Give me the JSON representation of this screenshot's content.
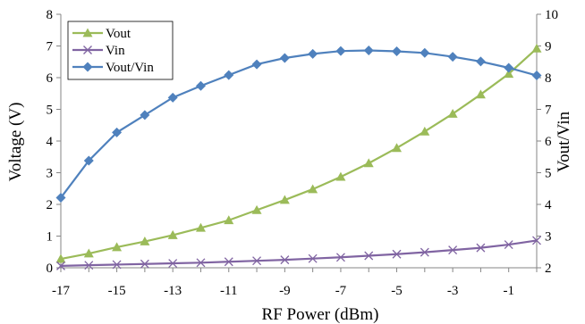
{
  "chart_data": {
    "type": "line",
    "x": [
      -17,
      -16,
      -15,
      -14,
      -13,
      -12,
      -11,
      -10,
      -9,
      -8,
      -7,
      -6,
      -5,
      -4,
      -3,
      -2,
      -1,
      0
    ],
    "x_ticks": [
      -17,
      -15,
      -13,
      -11,
      -9,
      -7,
      -5,
      -3,
      -1
    ],
    "x_tick_labels": [
      "-17",
      "-15",
      "-13",
      "-11",
      "-9",
      "-7",
      "-5",
      "-3",
      "-1"
    ],
    "xlim": [
      -17,
      0
    ],
    "xlabel": "RF Power (dBm)",
    "ylabel": "Voltage (V)",
    "ylim": [
      0,
      8
    ],
    "y_ticks": [
      0,
      1,
      2,
      3,
      4,
      5,
      6,
      7,
      8
    ],
    "y_tick_labels": [
      "0",
      "1",
      "2",
      "3",
      "4",
      "5",
      "6",
      "7",
      "8"
    ],
    "y2label": "Vout/Vin",
    "y2lim": [
      2,
      10
    ],
    "y2_ticks": [
      2,
      3,
      4,
      5,
      6,
      7,
      8,
      9,
      10
    ],
    "y2_tick_labels": [
      "2",
      "3",
      "4",
      "5",
      "6",
      "7",
      "8",
      "9",
      "10"
    ],
    "grid": false,
    "legend_position": "top-left",
    "series": [
      {
        "name": "Vout",
        "axis": "left",
        "color": "#9bbb59",
        "marker": "triangle",
        "values": [
          0.28,
          0.45,
          0.65,
          0.83,
          1.03,
          1.26,
          1.5,
          1.82,
          2.14,
          2.48,
          2.87,
          3.3,
          3.78,
          4.3,
          4.86,
          5.47,
          6.12,
          6.92
        ]
      },
      {
        "name": "Vin",
        "axis": "left",
        "color": "#8064a2",
        "marker": "x",
        "values": [
          0.06,
          0.08,
          0.1,
          0.12,
          0.14,
          0.16,
          0.19,
          0.22,
          0.25,
          0.29,
          0.33,
          0.38,
          0.43,
          0.49,
          0.56,
          0.63,
          0.73,
          0.86
        ]
      },
      {
        "name": "Vout/Vin",
        "axis": "right",
        "color": "#4f81bd",
        "marker": "diamond",
        "values": [
          4.21,
          5.38,
          6.27,
          6.82,
          7.37,
          7.74,
          8.08,
          8.42,
          8.62,
          8.75,
          8.84,
          8.86,
          8.83,
          8.78,
          8.66,
          8.51,
          8.31,
          8.07
        ]
      }
    ]
  }
}
